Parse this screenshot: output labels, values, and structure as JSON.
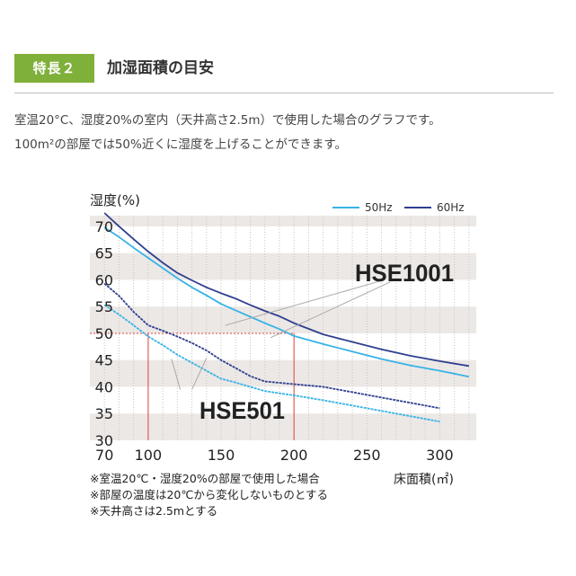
{
  "header": {
    "badge": "特長２",
    "title": "加湿面積の目安"
  },
  "description": {
    "line1": "室温20°C、湿度20%の室内（天井高さ2.5m）で使用した場合のグラフです。",
    "line2": "100m²の部屋では50%近くに湿度を上げることができます。"
  },
  "notes": [
    "※室温20℃・湿度20%の部屋で使用した場合",
    "※部屋の温度は20℃から変化しないものとする",
    "※天井高さは2.5mとする"
  ],
  "colors": {
    "accent": "#7fb03a",
    "hz50": "#36b3e6",
    "hz60": "#2f3f8f",
    "reference": "#e0443e",
    "band": "#ece8e6"
  },
  "chart_data": {
    "type": "line",
    "ylabel": "湿度(%)",
    "xlabel": "床面積(㎡)",
    "xlim": [
      60,
      325
    ],
    "ylim": [
      30,
      72
    ],
    "x_ticks": [
      70,
      100,
      150,
      200,
      250,
      300
    ],
    "y_ticks": [
      30,
      35,
      40,
      45,
      50,
      55,
      60,
      65,
      70
    ],
    "legend": {
      "position": "top-right",
      "entries": [
        "50Hz",
        "60Hz"
      ]
    },
    "grid": "vertical dotted lines, alternating horizontal bands",
    "reference": {
      "y": 50,
      "x": [
        100,
        200
      ]
    },
    "labels": [
      "HSE1001",
      "HSE501"
    ],
    "series": [
      {
        "model": "HSE1001",
        "name": "60Hz",
        "color": "#2f3f8f",
        "x": [
          70,
          80,
          90,
          100,
          110,
          120,
          130,
          140,
          150,
          160,
          170,
          180,
          190,
          200,
          220,
          240,
          260,
          280,
          300,
          320
        ],
        "y": [
          72.5,
          70.0,
          67.6,
          65.3,
          63.2,
          61.3,
          59.9,
          58.6,
          57.5,
          56.5,
          55.3,
          54.2,
          53.2,
          51.9,
          49.8,
          48.4,
          47.0,
          45.8,
          44.8,
          43.9
        ]
      },
      {
        "model": "HSE1001",
        "name": "50Hz",
        "color": "#36b3e6",
        "x": [
          70,
          80,
          90,
          100,
          110,
          120,
          130,
          140,
          150,
          160,
          170,
          180,
          190,
          200,
          220,
          240,
          260,
          280,
          300,
          320
        ],
        "y": [
          69.8,
          68.0,
          66.0,
          64.1,
          62.2,
          60.3,
          58.6,
          57.1,
          55.5,
          54.3,
          53.1,
          51.9,
          50.8,
          49.5,
          48.0,
          46.6,
          45.2,
          44.0,
          43.0,
          41.9
        ]
      },
      {
        "model": "HSE501",
        "name": "60Hz",
        "color": "#2f3f8f",
        "x": [
          70,
          80,
          90,
          100,
          110,
          120,
          130,
          140,
          150,
          160,
          170,
          180,
          200,
          220,
          240,
          260,
          280,
          300
        ],
        "y": [
          59.3,
          57.0,
          54.0,
          51.5,
          50.5,
          49.4,
          48.2,
          46.8,
          45.0,
          43.5,
          42.0,
          41.0,
          40.5,
          40.0,
          39.0,
          38.0,
          37.0,
          36.0
        ]
      },
      {
        "model": "HSE501",
        "name": "50Hz",
        "color": "#36b3e6",
        "x": [
          70,
          80,
          90,
          100,
          110,
          120,
          130,
          140,
          150,
          160,
          170,
          180,
          200,
          220,
          240,
          260,
          280,
          300
        ],
        "y": [
          55.3,
          53.5,
          51.5,
          49.4,
          47.8,
          46.0,
          44.5,
          43.0,
          41.5,
          40.8,
          40.0,
          39.2,
          38.4,
          37.5,
          36.5,
          35.5,
          34.5,
          33.5
        ]
      }
    ]
  }
}
